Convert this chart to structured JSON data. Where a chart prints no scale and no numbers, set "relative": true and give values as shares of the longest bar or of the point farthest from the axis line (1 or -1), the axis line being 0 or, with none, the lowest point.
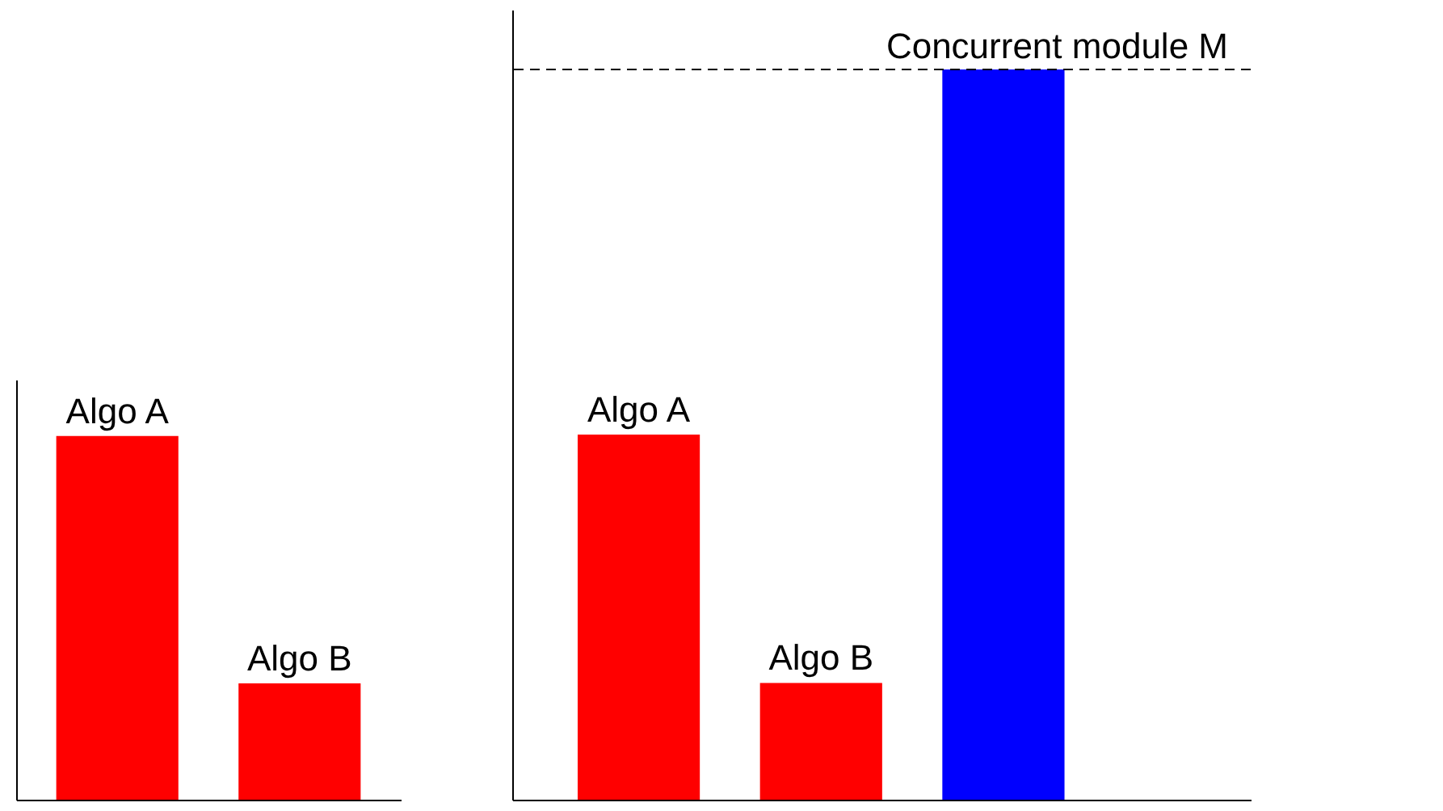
{
  "chart_data": [
    {
      "type": "bar",
      "relative": true,
      "categories": [
        null,
        null
      ],
      "series": [
        {
          "color": "#ff0000",
          "values": [
            1,
            0.32
          ]
        }
      ],
      "annotations": [
        "Algo A",
        "Algo B"
      ],
      "grid": false
    },
    {
      "type": "bar",
      "relative": true,
      "categories": [
        null,
        null,
        null
      ],
      "series": [
        {
          "colors": [
            "#ff0000",
            "#ff0000",
            "#0000ff"
          ],
          "values": [
            0.5,
            0.16,
            1
          ]
        }
      ],
      "annotations": [
        "Algo A",
        "Algo B"
      ],
      "ref_lines": [
        {
          "axis": "y",
          "value": 1,
          "label": "Concurrent module M",
          "color": "#000000",
          "line_style": "dashed"
        }
      ],
      "grid": false
    }
  ]
}
